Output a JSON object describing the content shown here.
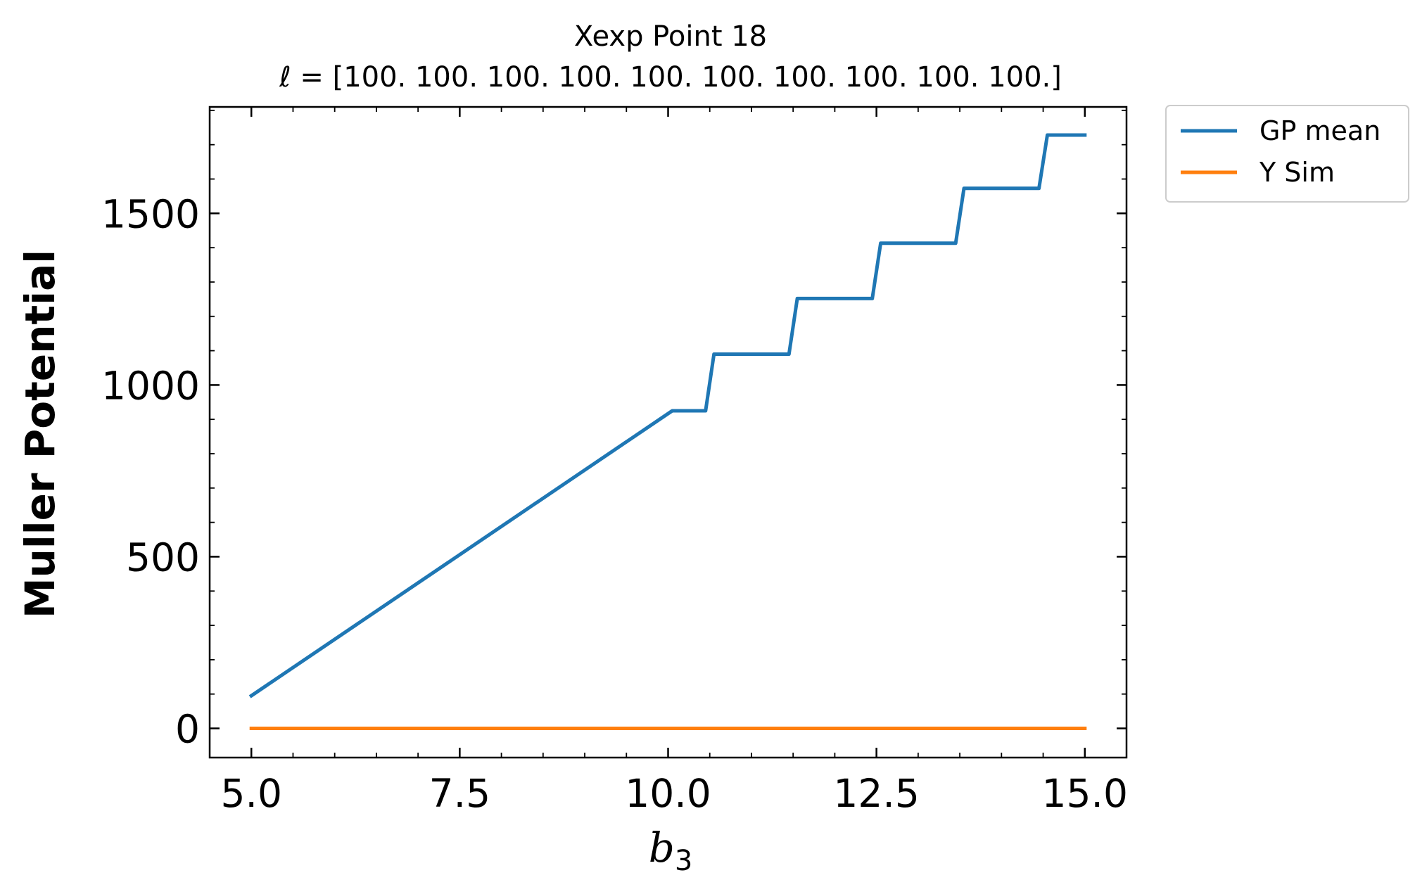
{
  "chart_data": {
    "type": "line",
    "title": "Xexp Point 18",
    "subtitle": "ℓ = [100. 100. 100. 100. 100. 100. 100. 100. 100. 100.]",
    "xlabel": "b",
    "xlabel_subscript": "3",
    "ylabel": "Muller Potential",
    "xlim": [
      4.5,
      15.5
    ],
    "ylim": [
      -85,
      1810
    ],
    "x_ticks": [
      5.0,
      7.5,
      10.0,
      12.5,
      15.0
    ],
    "x_tick_labels": [
      "5.0",
      "7.5",
      "10.0",
      "12.5",
      "15.0"
    ],
    "x_minor_step": 0.5,
    "y_ticks": [
      0,
      500,
      1000,
      1500
    ],
    "y_tick_labels": [
      "0",
      "500",
      "1000",
      "1500"
    ],
    "y_minor_step": 100,
    "grid": false,
    "legend_placement": "outside-top-right",
    "series": [
      {
        "name": "GP mean",
        "color": "#1f77b4",
        "x": [
          5.0,
          10.05,
          10.45,
          10.55,
          11.45,
          11.55,
          12.45,
          12.55,
          13.45,
          13.55,
          14.45,
          14.55,
          15.0
        ],
        "y": [
          95,
          925,
          925,
          1090,
          1090,
          1252,
          1252,
          1413,
          1413,
          1573,
          1573,
          1728,
          1728
        ]
      },
      {
        "name": "Y Sim",
        "color": "#ff7f0e",
        "x": [
          5.0,
          15.0
        ],
        "y": [
          0,
          0
        ]
      }
    ]
  }
}
